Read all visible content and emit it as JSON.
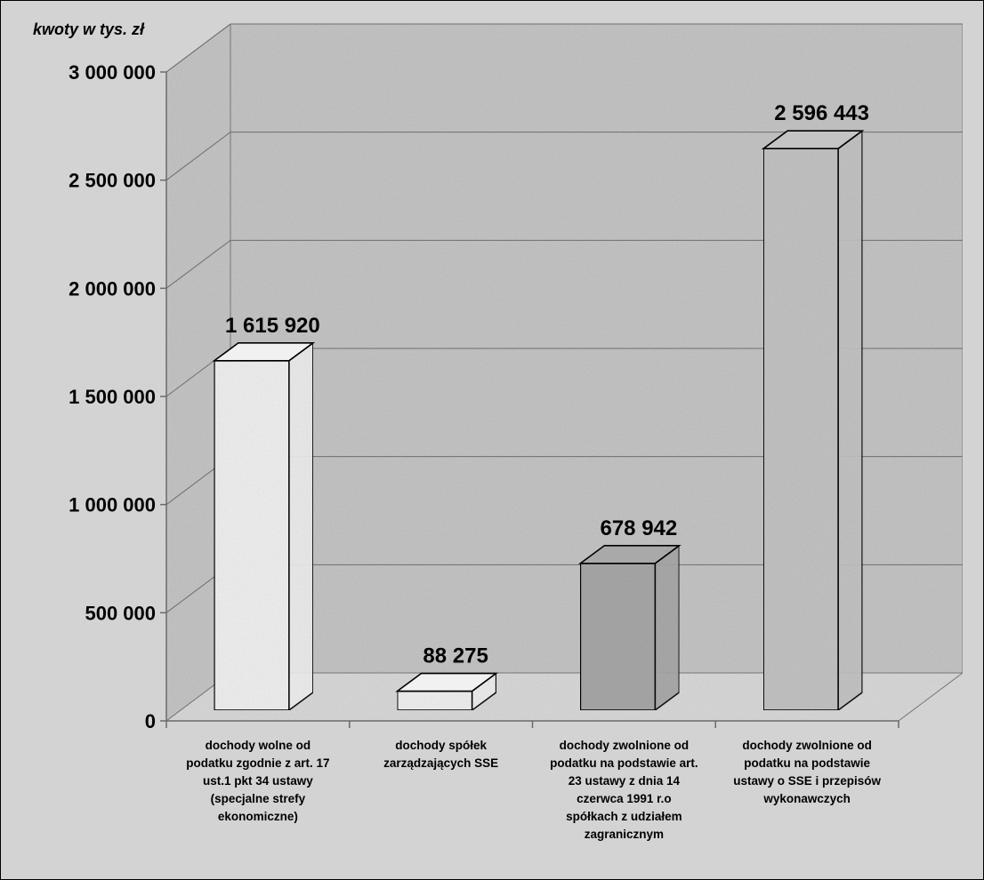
{
  "chart_data": {
    "type": "bar",
    "title": "",
    "xlabel": "",
    "ylabel": "kwoty w tys. zł",
    "ylim": [
      0,
      3000000
    ],
    "grid": true,
    "three_d": true,
    "yticks": [
      0,
      500000,
      1000000,
      1500000,
      2000000,
      2500000,
      3000000
    ],
    "ytick_labels": [
      "0",
      "500 000",
      "1 000 000",
      "1 500 000",
      "2 000 000",
      "2 500 000",
      "3 000 000"
    ],
    "categories": [
      [
        "dochody wolne od",
        "podatku zgodnie z art. 17",
        "ust.1 pkt 34 ustawy",
        "(specjalne strefy",
        "ekonomiczne)"
      ],
      [
        "dochody spółek",
        "zarządzających SSE"
      ],
      [
        "dochody zwolnione od",
        "podatku na podstawie art.",
        "23 ustawy z dnia 14",
        "czerwca 1991 r.o",
        "spółkach z udziałem",
        "zagranicznym"
      ],
      [
        "dochody zwolnione od",
        "podatku na podstawie",
        "ustawy o SSE i przepisów",
        "wykonawczych"
      ]
    ],
    "values": [
      1615920,
      88275,
      678942,
      2596443
    ],
    "value_labels": [
      "1 615 920",
      "88 275",
      "678 942",
      "2 596 443"
    ],
    "bar_colors": [
      "#f1f1f1",
      "#f1f1f1",
      "#a9a9a9",
      "#c4c4c4"
    ],
    "colors": {
      "wall": "#c6c6c6",
      "floor": "#dadada",
      "background": "#d3d3d3",
      "gridline": "#6e6e6e"
    }
  }
}
